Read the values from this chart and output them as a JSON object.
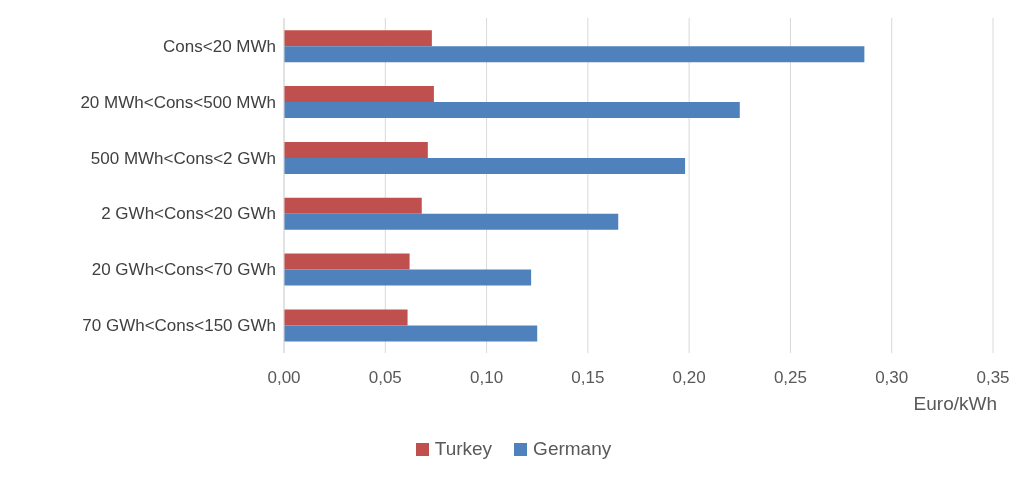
{
  "chart_data": {
    "type": "bar",
    "orientation": "horizontal",
    "xlabel": "Euro/kWh",
    "categories": [
      "Cons<20 MWh",
      "20 MWh<Cons<500 MWh",
      "500 MWh<Cons<2 GWh",
      "2 GWh<Cons<20 GWh",
      "20 GWh<Cons<70 GWh",
      "70 GWh<Cons<150 GWh"
    ],
    "series": [
      {
        "name": "Turkey",
        "color": "#c0504d",
        "values": [
          0.073,
          0.074,
          0.071,
          0.068,
          0.062,
          0.061
        ]
      },
      {
        "name": "Germany",
        "color": "#4f81bd",
        "values": [
          0.2865,
          0.225,
          0.198,
          0.165,
          0.122,
          0.125
        ]
      }
    ],
    "xlim": [
      0,
      0.35
    ],
    "xticks": [
      {
        "value": 0,
        "label": "0,00"
      },
      {
        "value": 0.05,
        "label": "0,05"
      },
      {
        "value": 0.1,
        "label": "0,10"
      },
      {
        "value": 0.15,
        "label": "0,15"
      },
      {
        "value": 0.2,
        "label": "0,20"
      },
      {
        "value": 0.25,
        "label": "0,25"
      },
      {
        "value": 0.3,
        "label": "0,30"
      },
      {
        "value": 0.35,
        "label": "0,35"
      }
    ],
    "grid": "x",
    "legend": "bottom"
  }
}
